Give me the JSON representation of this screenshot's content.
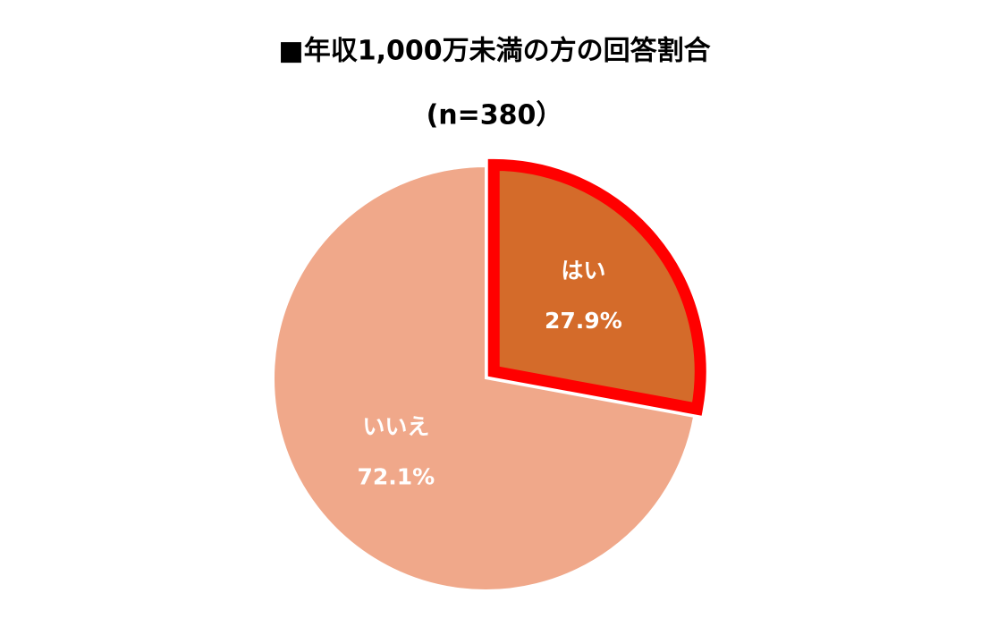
{
  "chart_data": {
    "type": "pie",
    "title": "■年収1,000万未満の方の回答割合",
    "subtitle": "(n=380）",
    "categories": [
      "はい",
      "いいえ"
    ],
    "values": [
      27.9,
      72.1
    ],
    "value_labels": [
      "27.9%",
      "72.1%"
    ],
    "colors": [
      "#d46b2a",
      "#f0a88a"
    ],
    "explode": [
      true,
      false
    ],
    "highlight_color": "#ff0000"
  }
}
